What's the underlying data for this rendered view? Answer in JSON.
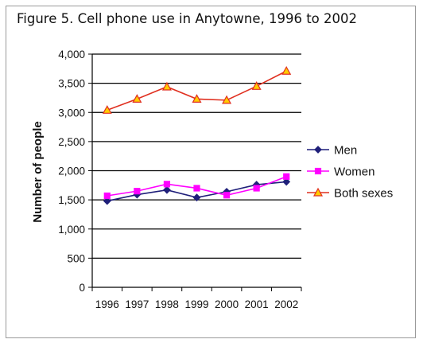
{
  "chart_data": {
    "type": "line",
    "title": "Figure 5. Cell phone use in Anytowne, 1996 to 2002",
    "xlabel": "",
    "ylabel": "Number of people",
    "categories": [
      "1996",
      "1997",
      "1998",
      "1999",
      "2000",
      "2001",
      "2002"
    ],
    "ylim": [
      0,
      4000
    ],
    "yticks": [
      "0",
      "500",
      "1,000",
      "1,500",
      "2,000",
      "2,500",
      "3,000",
      "3,500",
      "4,000"
    ],
    "grid": true,
    "legend_position": "right",
    "series": [
      {
        "name": "Men",
        "color": "#1f1f7a",
        "marker": "diamond",
        "values": [
          1480,
          1590,
          1670,
          1540,
          1640,
          1760,
          1810
        ]
      },
      {
        "name": "Women",
        "color": "#ff00ff",
        "marker": "square",
        "values": [
          1570,
          1650,
          1770,
          1700,
          1580,
          1700,
          1900
        ]
      },
      {
        "name": "Both sexes",
        "color": "#e03020",
        "marker": "triangle",
        "marker_fill": "#ffcc00",
        "values": [
          3040,
          3230,
          3440,
          3230,
          3210,
          3450,
          3710
        ]
      }
    ]
  }
}
